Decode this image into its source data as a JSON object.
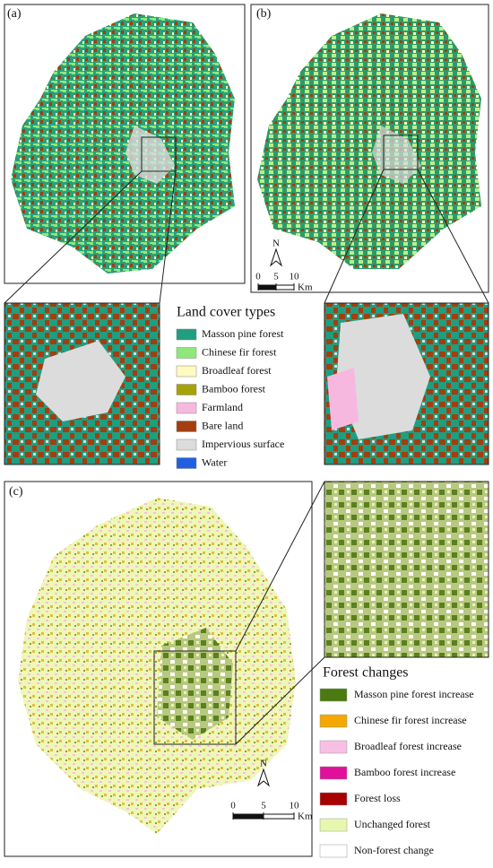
{
  "panels": [
    {
      "label": "(a)"
    },
    {
      "label": "(b)"
    },
    {
      "label": "(c)"
    }
  ],
  "land_cover_legend": {
    "title": "Land cover types",
    "items": [
      {
        "label": "Masson pine forest",
        "color": "#1f9e80"
      },
      {
        "label": "Chinese fir forest",
        "color": "#8ee87a"
      },
      {
        "label": "Broadleaf forest",
        "color": "#fdfbc0"
      },
      {
        "label": "Bamboo forest",
        "color": "#a8a20a"
      },
      {
        "label": "Farmland",
        "color": "#f7b8e0"
      },
      {
        "label": "Bare land",
        "color": "#a33e10"
      },
      {
        "label": "Impervious surface",
        "color": "#dcdcdc"
      },
      {
        "label": "Water",
        "color": "#1f5fe0"
      }
    ]
  },
  "forest_change_legend": {
    "title": "Forest changes",
    "items": [
      {
        "label": "Masson pine forest increase",
        "color": "#4a7a10"
      },
      {
        "label": "Chinese fir forest increase",
        "color": "#f5a800"
      },
      {
        "label": "Broadleaf forest increase",
        "color": "#f8bfe4"
      },
      {
        "label": "Bamboo forest increase",
        "color": "#e0109a"
      },
      {
        "label": "Forest loss",
        "color": "#a80000"
      },
      {
        "label": "Unchanged forest",
        "color": "#e8f7b0"
      },
      {
        "label": "Non-forest change",
        "color": "#ffffff"
      }
    ]
  },
  "scale_bars": [
    {
      "north": "N",
      "ticks": [
        0,
        5,
        10
      ],
      "unit": "Km"
    },
    {
      "north": "N",
      "ticks": [
        0,
        5,
        10
      ],
      "unit": "Km"
    }
  ]
}
